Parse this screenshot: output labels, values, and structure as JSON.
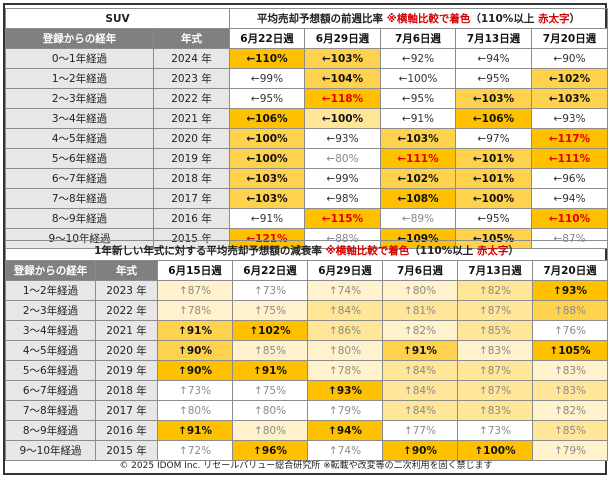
{
  "table1": {
    "category": "SUV",
    "title_main": "平均売却予想額の前週比率",
    "title_note1": "※横軸比較で着色",
    "title_note2": "（110%以上",
    "title_note3": "赤太字",
    "title_note4": "）",
    "col_label": "登録からの経年",
    "col_year": "年式",
    "weeks": [
      "6月22日週",
      "6月29日週",
      "7月6日週",
      "7月13日週",
      "7月20日週"
    ],
    "rows": [
      {
        "label": "0～1年経過",
        "year": "2024 年",
        "cells": [
          {
            "t": "←110%",
            "c": "c4",
            "s": "bold"
          },
          {
            "t": "←103%",
            "c": "c3",
            "s": "bold"
          },
          {
            "t": "←92%",
            "c": "c0",
            "s": "norm"
          },
          {
            "t": "←94%",
            "c": "c0",
            "s": "norm"
          },
          {
            "t": "←90%",
            "c": "c0",
            "s": "norm"
          }
        ]
      },
      {
        "label": "1～2年経過",
        "year": "2023 年",
        "cells": [
          {
            "t": "←99%",
            "c": "c0",
            "s": "norm"
          },
          {
            "t": "←104%",
            "c": "c3",
            "s": "bold"
          },
          {
            "t": "←100%",
            "c": "c0",
            "s": "norm"
          },
          {
            "t": "←95%",
            "c": "c0",
            "s": "norm"
          },
          {
            "t": "←102%",
            "c": "c3",
            "s": "bold"
          }
        ]
      },
      {
        "label": "2～3年経過",
        "year": "2022 年",
        "cells": [
          {
            "t": "←95%",
            "c": "c0",
            "s": "norm"
          },
          {
            "t": "←118%",
            "c": "c4",
            "s": "red"
          },
          {
            "t": "←95%",
            "c": "c0",
            "s": "norm"
          },
          {
            "t": "←103%",
            "c": "c3",
            "s": "bold"
          },
          {
            "t": "←103%",
            "c": "c3",
            "s": "bold"
          }
        ]
      },
      {
        "label": "3～4年経過",
        "year": "2021 年",
        "cells": [
          {
            "t": "←106%",
            "c": "c4",
            "s": "bold"
          },
          {
            "t": "←100%",
            "c": "c2",
            "s": "bold"
          },
          {
            "t": "←91%",
            "c": "c0",
            "s": "norm"
          },
          {
            "t": "←106%",
            "c": "c4",
            "s": "bold"
          },
          {
            "t": "←93%",
            "c": "c0",
            "s": "norm"
          }
        ]
      },
      {
        "label": "4～5年経過",
        "year": "2020 年",
        "cells": [
          {
            "t": "←100%",
            "c": "c3",
            "s": "bold"
          },
          {
            "t": "←93%",
            "c": "c0",
            "s": "norm"
          },
          {
            "t": "←103%",
            "c": "c3",
            "s": "bold"
          },
          {
            "t": "←97%",
            "c": "c0",
            "s": "norm"
          },
          {
            "t": "←117%",
            "c": "c4",
            "s": "red"
          }
        ]
      },
      {
        "label": "5～6年経過",
        "year": "2019 年",
        "cells": [
          {
            "t": "←100%",
            "c": "c3",
            "s": "bold"
          },
          {
            "t": "←80%",
            "c": "c0",
            "s": "light"
          },
          {
            "t": "←111%",
            "c": "c4",
            "s": "red"
          },
          {
            "t": "←101%",
            "c": "c3",
            "s": "bold"
          },
          {
            "t": "←111%",
            "c": "c4",
            "s": "red"
          }
        ]
      },
      {
        "label": "6～7年経過",
        "year": "2018 年",
        "cells": [
          {
            "t": "←103%",
            "c": "c3",
            "s": "bold"
          },
          {
            "t": "←99%",
            "c": "c0",
            "s": "norm"
          },
          {
            "t": "←102%",
            "c": "c3",
            "s": "bold"
          },
          {
            "t": "←101%",
            "c": "c3",
            "s": "bold"
          },
          {
            "t": "←96%",
            "c": "c0",
            "s": "norm"
          }
        ]
      },
      {
        "label": "7～8年経過",
        "year": "2017 年",
        "cells": [
          {
            "t": "←103%",
            "c": "c3",
            "s": "bold"
          },
          {
            "t": "←98%",
            "c": "c0",
            "s": "norm"
          },
          {
            "t": "←108%",
            "c": "c4",
            "s": "bold"
          },
          {
            "t": "←100%",
            "c": "c3",
            "s": "bold"
          },
          {
            "t": "←94%",
            "c": "c0",
            "s": "norm"
          }
        ]
      },
      {
        "label": "8～9年経過",
        "year": "2016 年",
        "cells": [
          {
            "t": "←91%",
            "c": "c0",
            "s": "norm"
          },
          {
            "t": "←115%",
            "c": "c4",
            "s": "red"
          },
          {
            "t": "←89%",
            "c": "c0",
            "s": "light"
          },
          {
            "t": "←95%",
            "c": "c0",
            "s": "norm"
          },
          {
            "t": "←110%",
            "c": "c4",
            "s": "red"
          }
        ]
      },
      {
        "label": "9～10年経過",
        "year": "2015 年",
        "cells": [
          {
            "t": "←121%",
            "c": "c4",
            "s": "red"
          },
          {
            "t": "←88%",
            "c": "c0",
            "s": "light"
          },
          {
            "t": "←109%",
            "c": "c4",
            "s": "bold"
          },
          {
            "t": "←105%",
            "c": "c3",
            "s": "bold"
          },
          {
            "t": "←87%",
            "c": "c0",
            "s": "light"
          }
        ]
      }
    ]
  },
  "table2": {
    "title_main": "1年新しい年式に対する平均売却予想額の減衰率",
    "title_note1": "※横軸比較で着色",
    "title_note2": "（110%以上",
    "title_note3": "赤太字",
    "title_note4": "）",
    "col_label": "登録からの経年",
    "col_year": "年式",
    "weeks": [
      "6月15日週",
      "6月22日週",
      "6月29日週",
      "7月6日週",
      "7月13日週",
      "7月20日週"
    ],
    "rows": [
      {
        "label": "1～2年経過",
        "year": "2023 年",
        "cells": [
          {
            "t": "↑87%",
            "c": "c1",
            "s": "light"
          },
          {
            "t": "↑73%",
            "c": "c0",
            "s": "light"
          },
          {
            "t": "↑74%",
            "c": "c1",
            "s": "light"
          },
          {
            "t": "↑80%",
            "c": "c1",
            "s": "light"
          },
          {
            "t": "↑82%",
            "c": "c2",
            "s": "light"
          },
          {
            "t": "↑93%",
            "c": "c4",
            "s": "bold"
          }
        ]
      },
      {
        "label": "2～3年経過",
        "year": "2022 年",
        "cells": [
          {
            "t": "↑78%",
            "c": "c1",
            "s": "light"
          },
          {
            "t": "↑75%",
            "c": "c1",
            "s": "light"
          },
          {
            "t": "↑84%",
            "c": "c2",
            "s": "light"
          },
          {
            "t": "↑81%",
            "c": "c2",
            "s": "light"
          },
          {
            "t": "↑87%",
            "c": "c2",
            "s": "light"
          },
          {
            "t": "↑88%",
            "c": "c3",
            "s": "light"
          }
        ]
      },
      {
        "label": "3～4年経過",
        "year": "2021 年",
        "cells": [
          {
            "t": "↑91%",
            "c": "c3",
            "s": "bold"
          },
          {
            "t": "↑102%",
            "c": "c4",
            "s": "bold"
          },
          {
            "t": "↑86%",
            "c": "c2",
            "s": "light"
          },
          {
            "t": "↑82%",
            "c": "c1",
            "s": "light"
          },
          {
            "t": "↑85%",
            "c": "c2",
            "s": "light"
          },
          {
            "t": "↑76%",
            "c": "c0",
            "s": "light"
          }
        ]
      },
      {
        "label": "4～5年経過",
        "year": "2020 年",
        "cells": [
          {
            "t": "↑90%",
            "c": "c3",
            "s": "bold"
          },
          {
            "t": "↑85%",
            "c": "c1",
            "s": "light"
          },
          {
            "t": "↑80%",
            "c": "c1",
            "s": "light"
          },
          {
            "t": "↑91%",
            "c": "c3",
            "s": "bold"
          },
          {
            "t": "↑83%",
            "c": "c1",
            "s": "light"
          },
          {
            "t": "↑105%",
            "c": "c4",
            "s": "bold"
          }
        ]
      },
      {
        "label": "5～6年経過",
        "year": "2019 年",
        "cells": [
          {
            "t": "↑90%",
            "c": "c4",
            "s": "bold"
          },
          {
            "t": "↑91%",
            "c": "c4",
            "s": "bold"
          },
          {
            "t": "↑78%",
            "c": "c1",
            "s": "light"
          },
          {
            "t": "↑84%",
            "c": "c2",
            "s": "light"
          },
          {
            "t": "↑87%",
            "c": "c2",
            "s": "light"
          },
          {
            "t": "↑83%",
            "c": "c1",
            "s": "light"
          }
        ]
      },
      {
        "label": "6～7年経過",
        "year": "2018 年",
        "cells": [
          {
            "t": "↑73%",
            "c": "c0",
            "s": "light"
          },
          {
            "t": "↑75%",
            "c": "c0",
            "s": "light"
          },
          {
            "t": "↑93%",
            "c": "c4",
            "s": "bold"
          },
          {
            "t": "↑84%",
            "c": "c2",
            "s": "light"
          },
          {
            "t": "↑87%",
            "c": "c2",
            "s": "light"
          },
          {
            "t": "↑83%",
            "c": "c2",
            "s": "light"
          }
        ]
      },
      {
        "label": "7～8年経過",
        "year": "2017 年",
        "cells": [
          {
            "t": "↑80%",
            "c": "c0",
            "s": "light"
          },
          {
            "t": "↑80%",
            "c": "c0",
            "s": "light"
          },
          {
            "t": "↑79%",
            "c": "c0",
            "s": "light"
          },
          {
            "t": "↑84%",
            "c": "c2",
            "s": "light"
          },
          {
            "t": "↑83%",
            "c": "c2",
            "s": "light"
          },
          {
            "t": "↑82%",
            "c": "c1",
            "s": "light"
          }
        ]
      },
      {
        "label": "8～9年経過",
        "year": "2016 年",
        "cells": [
          {
            "t": "↑91%",
            "c": "c4",
            "s": "bold"
          },
          {
            "t": "↑80%",
            "c": "c1",
            "s": "light"
          },
          {
            "t": "↑94%",
            "c": "c4",
            "s": "bold"
          },
          {
            "t": "↑77%",
            "c": "c0",
            "s": "light"
          },
          {
            "t": "↑73%",
            "c": "c0",
            "s": "light"
          },
          {
            "t": "↑85%",
            "c": "c2",
            "s": "light"
          }
        ]
      },
      {
        "label": "9～10年経過",
        "year": "2015 年",
        "cells": [
          {
            "t": "↑72%",
            "c": "c0",
            "s": "light"
          },
          {
            "t": "↑96%",
            "c": "c4",
            "s": "bold"
          },
          {
            "t": "↑74%",
            "c": "c0",
            "s": "light"
          },
          {
            "t": "↑90%",
            "c": "c4",
            "s": "bold"
          },
          {
            "t": "↑100%",
            "c": "c4",
            "s": "bold"
          },
          {
            "t": "↑79%",
            "c": "c1",
            "s": "light"
          }
        ]
      }
    ]
  },
  "footer": "© 2025 IDOM Inc. リセールバリュー総合研究所 ※転載や改変等の二次利用を固く禁じます"
}
